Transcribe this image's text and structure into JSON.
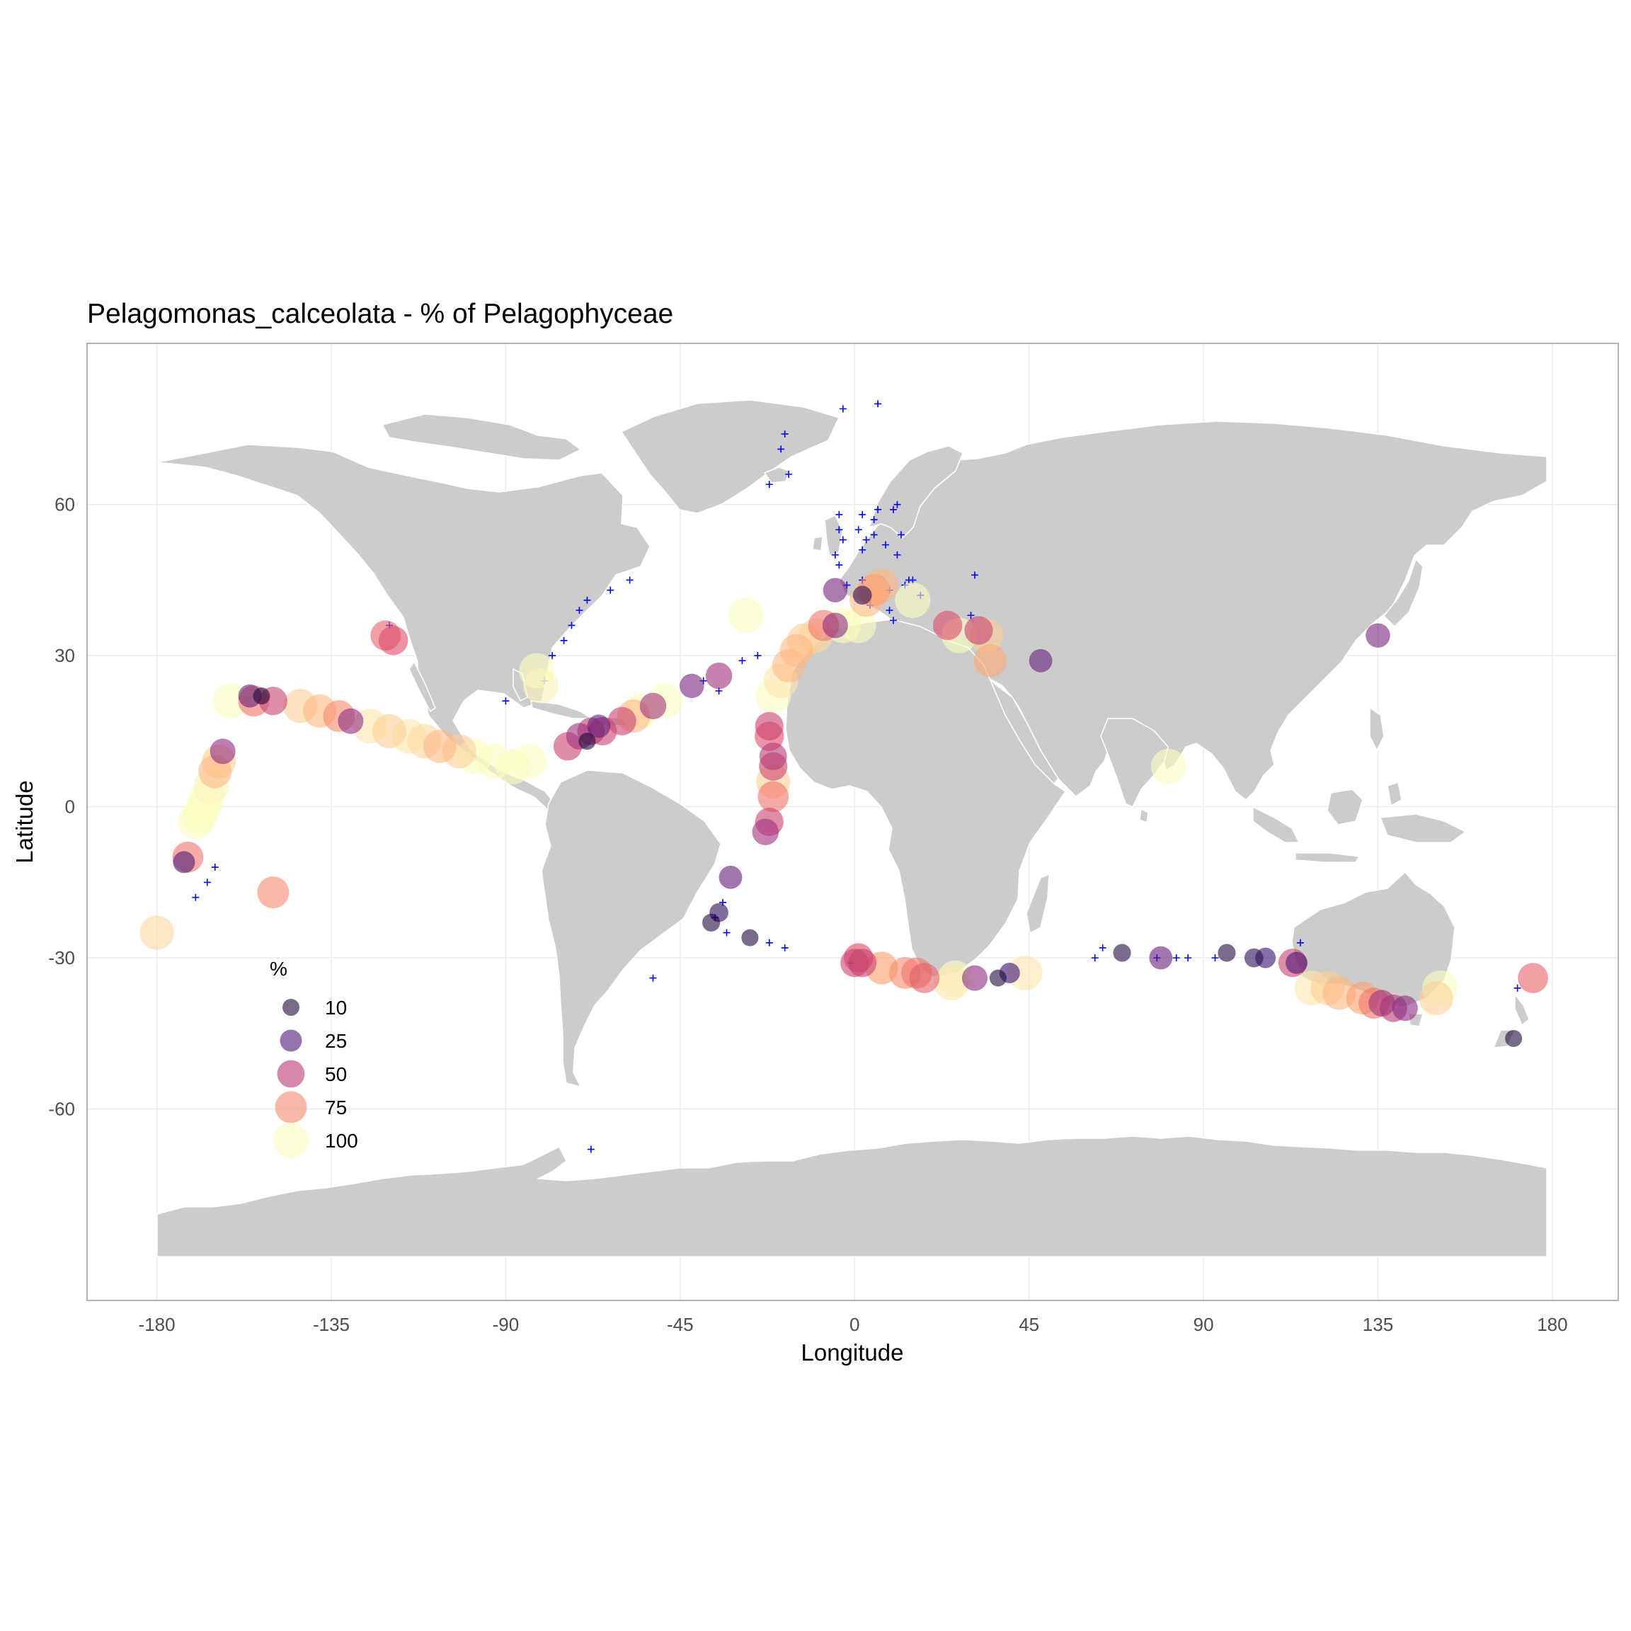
{
  "chart_data": {
    "type": "scatter",
    "title": "Pelagomonas_calceolata - % of Pelagophyceae",
    "xlabel": "Longitude",
    "ylabel": "Latitude",
    "xlim": [
      -198,
      197
    ],
    "ylim": [
      -98,
      92
    ],
    "xticks": [
      -180,
      -135,
      -90,
      -45,
      0,
      45,
      90,
      135,
      180
    ],
    "yticks": [
      -60,
      -30,
      0,
      30,
      60
    ],
    "grid": true,
    "size_legend": {
      "title": "%",
      "placement": "bottom-left",
      "values": [
        10,
        25,
        50,
        75,
        100
      ]
    },
    "colors": {
      "land": "#cccccc",
      "border": "#ffffff",
      "zero_marker": "#0000ff",
      "panel_border": "#b3b3b3",
      "grid": "#ebebeb",
      "scale": [
        "#000004",
        "#3b0f70",
        "#8c2981",
        "#de4968",
        "#fe9f6d",
        "#fcfdbf"
      ]
    },
    "zero_points": [
      [
        -170,
        -18
      ],
      [
        -167,
        -15
      ],
      [
        -165,
        -12
      ],
      [
        -120,
        36
      ],
      [
        -78,
        30
      ],
      [
        -75,
        33
      ],
      [
        -73,
        36
      ],
      [
        -71,
        39
      ],
      [
        -69,
        41
      ],
      [
        -63,
        43
      ],
      [
        -58,
        45
      ],
      [
        -90,
        21
      ],
      [
        -80,
        25
      ],
      [
        -35,
        23
      ],
      [
        -39,
        25
      ],
      [
        -29,
        29
      ],
      [
        -25,
        30
      ],
      [
        -34,
        -19
      ],
      [
        -36,
        -22
      ],
      [
        -33,
        -25
      ],
      [
        -22,
        -27
      ],
      [
        -18,
        -28
      ],
      [
        -52,
        -34
      ],
      [
        -68,
        -68
      ],
      [
        -18,
        74
      ],
      [
        -19,
        71
      ],
      [
        -22,
        64
      ],
      [
        -17,
        66
      ],
      [
        -3,
        79
      ],
      [
        6,
        80
      ],
      [
        -4,
        58
      ],
      [
        -4,
        55
      ],
      [
        -3,
        53
      ],
      [
        -5,
        50
      ],
      [
        -4,
        48
      ],
      [
        2,
        51
      ],
      [
        3,
        53
      ],
      [
        1,
        55
      ],
      [
        2,
        58
      ],
      [
        5,
        57
      ],
      [
        6,
        59
      ],
      [
        10,
        59
      ],
      [
        11,
        60
      ],
      [
        5,
        54
      ],
      [
        8,
        52
      ],
      [
        12,
        54
      ],
      [
        11,
        50
      ],
      [
        14,
        45
      ],
      [
        -2,
        44
      ],
      [
        2,
        45
      ],
      [
        9,
        43
      ],
      [
        13,
        44
      ],
      [
        17,
        42
      ],
      [
        15,
        45
      ],
      [
        9,
        39
      ],
      [
        10,
        37
      ],
      [
        4,
        40
      ],
      [
        30,
        38
      ],
      [
        31,
        46
      ],
      [
        62,
        -30
      ],
      [
        64,
        -28
      ],
      [
        78,
        -30
      ],
      [
        83,
        -30
      ],
      [
        86,
        -30
      ],
      [
        93,
        -30
      ],
      [
        115,
        -27
      ],
      [
        171,
        -36
      ],
      [
        -1,
        -31
      ]
    ],
    "points": [
      {
        "lon": -150,
        "lat": 21,
        "pct": 55
      },
      {
        "lon": -155,
        "lat": 21,
        "pct": 70
      },
      {
        "lon": -161,
        "lat": 21,
        "pct": 100
      },
      {
        "lon": -156,
        "lat": 22,
        "pct": 30
      },
      {
        "lon": -153,
        "lat": 22,
        "pct": 10
      },
      {
        "lon": -143,
        "lat": 20,
        "pct": 90
      },
      {
        "lon": -138,
        "lat": 19,
        "pct": 85
      },
      {
        "lon": -133,
        "lat": 18,
        "pct": 75
      },
      {
        "lon": -130,
        "lat": 17,
        "pct": 40
      },
      {
        "lon": -125,
        "lat": 16,
        "pct": 95
      },
      {
        "lon": -120,
        "lat": 15,
        "pct": 90
      },
      {
        "lon": -115,
        "lat": 14,
        "pct": 95
      },
      {
        "lon": -111,
        "lat": 13,
        "pct": 92
      },
      {
        "lon": -107,
        "lat": 12,
        "pct": 85
      },
      {
        "lon": -102,
        "lat": 11,
        "pct": 90
      },
      {
        "lon": -98,
        "lat": 10,
        "pct": 100
      },
      {
        "lon": -93,
        "lat": 9,
        "pct": 100
      },
      {
        "lon": -88,
        "lat": 8,
        "pct": 100
      },
      {
        "lon": -84,
        "lat": 9,
        "pct": 100
      },
      {
        "lon": -121,
        "lat": 34,
        "pct": 65
      },
      {
        "lon": -119,
        "lat": 33,
        "pct": 60
      },
      {
        "lon": -163,
        "lat": 11,
        "pct": 40
      },
      {
        "lon": -164,
        "lat": 9,
        "pct": 90
      },
      {
        "lon": -165,
        "lat": 7,
        "pct": 85
      },
      {
        "lon": -166,
        "lat": 4,
        "pct": 98
      },
      {
        "lon": -167,
        "lat": 2,
        "pct": 100
      },
      {
        "lon": -168,
        "lat": 0,
        "pct": 100
      },
      {
        "lon": -169,
        "lat": -2,
        "pct": 100
      },
      {
        "lon": -170,
        "lat": -3,
        "pct": 100
      },
      {
        "lon": -172,
        "lat": -10,
        "pct": 70
      },
      {
        "lon": -173,
        "lat": -11,
        "pct": 25
      },
      {
        "lon": -150,
        "lat": -17,
        "pct": 75
      },
      {
        "lon": -180,
        "lat": -25,
        "pct": 92
      },
      {
        "lon": -82,
        "lat": 27,
        "pct": 100
      },
      {
        "lon": -81,
        "lat": 24,
        "pct": 98
      },
      {
        "lon": -74,
        "lat": 12,
        "pct": 55
      },
      {
        "lon": -71,
        "lat": 14,
        "pct": 45
      },
      {
        "lon": -68,
        "lat": 15,
        "pct": 50
      },
      {
        "lon": -66,
        "lat": 16,
        "pct": 30
      },
      {
        "lon": -65,
        "lat": 15,
        "pct": 55
      },
      {
        "lon": -69,
        "lat": 13,
        "pct": 10
      },
      {
        "lon": -60,
        "lat": 17,
        "pct": 55
      },
      {
        "lon": -57,
        "lat": 18,
        "pct": 85
      },
      {
        "lon": -55,
        "lat": 19,
        "pct": 100
      },
      {
        "lon": -52,
        "lat": 20,
        "pct": 45
      },
      {
        "lon": -49,
        "lat": 21,
        "pct": 100
      },
      {
        "lon": -42,
        "lat": 24,
        "pct": 35
      },
      {
        "lon": -35,
        "lat": 26,
        "pct": 45
      },
      {
        "lon": -28,
        "lat": 38,
        "pct": 100
      },
      {
        "lon": -22,
        "lat": 14,
        "pct": 60
      },
      {
        "lon": -22,
        "lat": 16,
        "pct": 55
      },
      {
        "lon": -21,
        "lat": 10,
        "pct": 50
      },
      {
        "lon": -21,
        "lat": 8,
        "pct": 55
      },
      {
        "lon": -21,
        "lat": 5,
        "pct": 90
      },
      {
        "lon": -21,
        "lat": 2,
        "pct": 70
      },
      {
        "lon": -22,
        "lat": -3,
        "pct": 55
      },
      {
        "lon": -23,
        "lat": -5,
        "pct": 45
      },
      {
        "lon": -32,
        "lat": -14,
        "pct": 30
      },
      {
        "lon": -35,
        "lat": -21,
        "pct": 15
      },
      {
        "lon": -37,
        "lat": -23,
        "pct": 12
      },
      {
        "lon": -27,
        "lat": -26,
        "pct": 10
      },
      {
        "lon": -21,
        "lat": 22,
        "pct": 100
      },
      {
        "lon": -19,
        "lat": 25,
        "pct": 95
      },
      {
        "lon": -17,
        "lat": 28,
        "pct": 85
      },
      {
        "lon": -15,
        "lat": 31,
        "pct": 85
      },
      {
        "lon": -13,
        "lat": 33,
        "pct": 90
      },
      {
        "lon": -10,
        "lat": 34,
        "pct": 92
      },
      {
        "lon": -8,
        "lat": 36,
        "pct": 70
      },
      {
        "lon": -5,
        "lat": 36,
        "pct": 40
      },
      {
        "lon": -3,
        "lat": 36,
        "pct": 100
      },
      {
        "lon": 1,
        "lat": 36,
        "pct": 100
      },
      {
        "lon": -5,
        "lat": 43,
        "pct": 35
      },
      {
        "lon": 3,
        "lat": 41,
        "pct": 85
      },
      {
        "lon": 5,
        "lat": 43,
        "pct": 80
      },
      {
        "lon": 7,
        "lat": 44,
        "pct": 85
      },
      {
        "lon": 2,
        "lat": 42,
        "pct": 15
      },
      {
        "lon": 15,
        "lat": 41,
        "pct": 100
      },
      {
        "lon": 24,
        "lat": 36,
        "pct": 60
      },
      {
        "lon": 27,
        "lat": 34,
        "pct": 100
      },
      {
        "lon": 32,
        "lat": 35,
        "pct": 55
      },
      {
        "lon": 34,
        "lat": 34,
        "pct": 90
      },
      {
        "lon": 35,
        "lat": 29,
        "pct": 82
      },
      {
        "lon": 48,
        "lat": 29,
        "pct": 30
      },
      {
        "lon": 81,
        "lat": 8,
        "pct": 100
      },
      {
        "lon": 135,
        "lat": 34,
        "pct": 35
      },
      {
        "lon": 0,
        "lat": -31,
        "pct": 55
      },
      {
        "lon": 1,
        "lat": -30,
        "pct": 60
      },
      {
        "lon": 2,
        "lat": -31,
        "pct": 55
      },
      {
        "lon": 7,
        "lat": -32,
        "pct": 80
      },
      {
        "lon": 13,
        "lat": -33,
        "pct": 75
      },
      {
        "lon": 16,
        "lat": -33,
        "pct": 70
      },
      {
        "lon": 18,
        "lat": -34,
        "pct": 65
      },
      {
        "lon": 25,
        "lat": -35,
        "pct": 95
      },
      {
        "lon": 26,
        "lat": -34,
        "pct": 100
      },
      {
        "lon": 31,
        "lat": -34,
        "pct": 40
      },
      {
        "lon": 37,
        "lat": -34,
        "pct": 10
      },
      {
        "lon": 40,
        "lat": -33,
        "pct": 20
      },
      {
        "lon": 44,
        "lat": -33,
        "pct": 95
      },
      {
        "lon": 69,
        "lat": -29,
        "pct": 12
      },
      {
        "lon": 79,
        "lat": -30,
        "pct": 30
      },
      {
        "lon": 96,
        "lat": -29,
        "pct": 12
      },
      {
        "lon": 103,
        "lat": -30,
        "pct": 15
      },
      {
        "lon": 106,
        "lat": -30,
        "pct": 20
      },
      {
        "lon": 113,
        "lat": -31,
        "pct": 55
      },
      {
        "lon": 114,
        "lat": -31,
        "pct": 25
      },
      {
        "lon": 118,
        "lat": -36,
        "pct": 95
      },
      {
        "lon": 122,
        "lat": -36,
        "pct": 90
      },
      {
        "lon": 125,
        "lat": -37,
        "pct": 85
      },
      {
        "lon": 131,
        "lat": -38,
        "pct": 80
      },
      {
        "lon": 134,
        "lat": -39,
        "pct": 70
      },
      {
        "lon": 136,
        "lat": -39,
        "pct": 45
      },
      {
        "lon": 139,
        "lat": -40,
        "pct": 50
      },
      {
        "lon": 142,
        "lat": -40,
        "pct": 40
      },
      {
        "lon": 150,
        "lat": -38,
        "pct": 90
      },
      {
        "lon": 151,
        "lat": -36,
        "pct": 100
      },
      {
        "lon": 175,
        "lat": -34,
        "pct": 65
      },
      {
        "lon": 170,
        "lat": -46,
        "pct": 10
      }
    ]
  }
}
